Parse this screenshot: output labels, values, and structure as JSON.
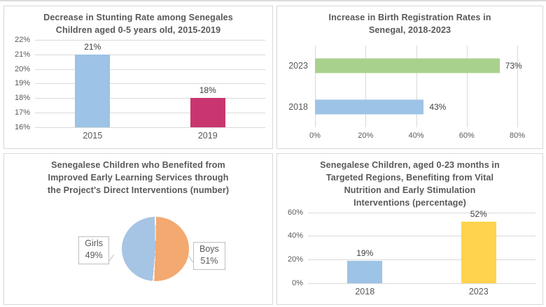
{
  "chart_data": [
    {
      "type": "bar",
      "title": "Decrease in Stunting Rate among Senegales\nChildren aged 0-5 years old, 2015-2019",
      "categories": [
        "2015",
        "2019"
      ],
      "values": [
        21,
        18
      ],
      "value_labels": [
        "21%",
        "18%"
      ],
      "bar_colors": [
        "#9DC3E6",
        "#C9366F"
      ],
      "ylim": [
        16,
        22
      ],
      "ytick_values": [
        22,
        21,
        20,
        19,
        18,
        17,
        16
      ],
      "ytick_labels": [
        "22%",
        "21%",
        "20%",
        "19%",
        "18%",
        "17%",
        "16%"
      ],
      "grid": true,
      "legend": "none"
    },
    {
      "type": "horizontal-bar",
      "title": "Increase in Birth Registration Rates in\nSenegal, 2018-2023",
      "categories": [
        "2023",
        "2018"
      ],
      "values": [
        73,
        43
      ],
      "value_labels": [
        "73%",
        "43%"
      ],
      "bar_colors": [
        "#A9D18E",
        "#9DC3E6"
      ],
      "xlim": [
        0,
        80
      ],
      "xtick_values": [
        0,
        20,
        40,
        60,
        80
      ],
      "xtick_labels": [
        "0%",
        "20%",
        "40%",
        "60%",
        "80%"
      ],
      "grid": true,
      "legend": "none"
    },
    {
      "type": "pie",
      "title": "Senegalese Children who Benefited from\nImproved Early Learning Services through\nthe Project's Direct Interventions (number)",
      "slices": [
        {
          "label": "Boys",
          "value": 51,
          "color": "#F3A970"
        },
        {
          "label": "Girls",
          "value": 49,
          "color": "#A6C4E4"
        }
      ],
      "callouts": [
        {
          "label": "Girls",
          "value_label": "49%",
          "side": "left"
        },
        {
          "label": "Boys",
          "value_label": "51%",
          "side": "right"
        }
      ],
      "legend": "none"
    },
    {
      "type": "bar",
      "title": "Senegalese Children, aged 0-23 months in\nTargeted Regions, Benefiting from Vital\nNutrition and Early Stimulation\nInterventions (percentage)",
      "categories": [
        "2018",
        "2023"
      ],
      "values": [
        19,
        52
      ],
      "value_labels": [
        "19%",
        "52%"
      ],
      "bar_colors": [
        "#9DC3E6",
        "#FFD34D"
      ],
      "ylim": [
        0,
        60
      ],
      "ytick_values": [
        60,
        40,
        20,
        0
      ],
      "ytick_labels": [
        "60%",
        "40%",
        "20%",
        "0%"
      ],
      "grid": true,
      "legend": "none"
    }
  ],
  "style": {
    "title_color": "#595959",
    "tick_color": "#595959",
    "data_label_color": "#3f3f3f",
    "gridline_color": "#D9D9D9",
    "panel_border_color": "#D8D8D8"
  }
}
